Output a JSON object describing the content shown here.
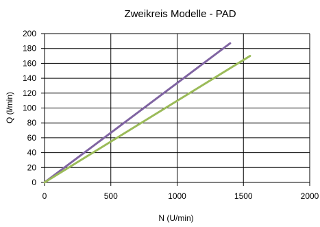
{
  "chart_data": {
    "type": "line",
    "title": "Zweikreis Modelle - PAD",
    "xlabel": "N (U/min)",
    "ylabel": "Q (l/min)",
    "xlim": [
      0,
      2000
    ],
    "ylim": [
      0,
      200
    ],
    "xticks": [
      0,
      500,
      1000,
      1500,
      2000
    ],
    "yticks": [
      0,
      20,
      40,
      60,
      80,
      100,
      120,
      140,
      160,
      180,
      200
    ],
    "xtick_labels": [
      "0",
      "500",
      "1000",
      "1500",
      "2000"
    ],
    "ytick_labels": [
      "0",
      "20",
      "40",
      "60",
      "80",
      "100",
      "120",
      "140",
      "160",
      "180",
      "200"
    ],
    "grid": {
      "horizontal": true,
      "vertical": true
    },
    "legend": "none",
    "series": [
      {
        "x": [
          0,
          1400
        ],
        "y": [
          0,
          187
        ],
        "color": "#8064a2"
      },
      {
        "x": [
          0,
          1550
        ],
        "y": [
          0,
          170
        ],
        "color": "#9bbb59"
      }
    ]
  }
}
